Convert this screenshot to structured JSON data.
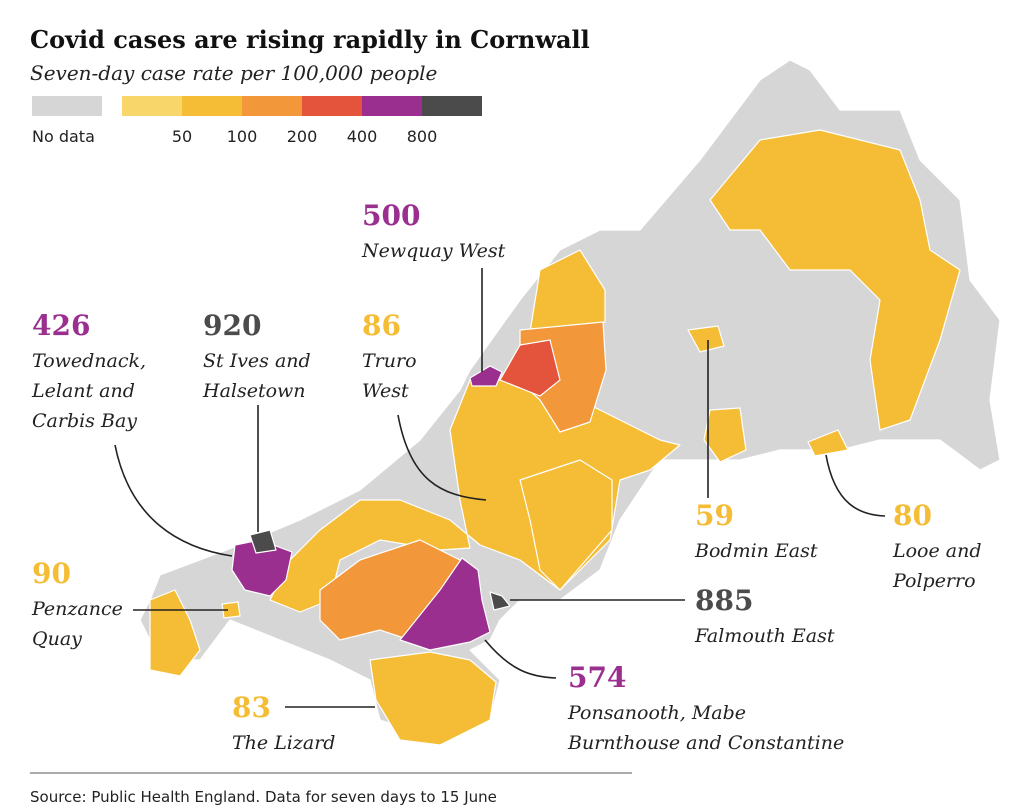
{
  "title": "Covid cases are rising rapidly in Cornwall",
  "subtitle": "Seven-day case rate per 100,000 people",
  "legend": {
    "no_data": "No data",
    "ticks": [
      50,
      100,
      200,
      400,
      800
    ],
    "colors": [
      "#d6d6d6",
      "#f9d66a",
      "#f5bd36",
      "#f2973a",
      "#e4533c",
      "#9b2f8f",
      "#4b4b4b"
    ]
  },
  "callouts": [
    {
      "value": 500,
      "lines": [
        "Newquay West"
      ]
    },
    {
      "value": 426,
      "lines": [
        "Towednack,",
        "Lelant and",
        "Carbis Bay"
      ]
    },
    {
      "value": 920,
      "lines": [
        "St Ives and",
        "Halsetown"
      ]
    },
    {
      "value": 86,
      "lines": [
        "Truro",
        "West"
      ]
    },
    {
      "value": 90,
      "lines": [
        "Penzance",
        "Quay"
      ]
    },
    {
      "value": 83,
      "lines": [
        "The Lizard"
      ]
    },
    {
      "value": 59,
      "lines": [
        "Bodmin East"
      ]
    },
    {
      "value": 80,
      "lines": [
        "Looe and",
        "Polperro"
      ]
    },
    {
      "value": 885,
      "lines": [
        "Falmouth East"
      ]
    },
    {
      "value": 574,
      "lines": [
        "Ponsanooth, Mabe",
        "Burnthouse and Constantine"
      ]
    }
  ],
  "source": "Source: Public Health England. Data for seven days to 15 June"
}
